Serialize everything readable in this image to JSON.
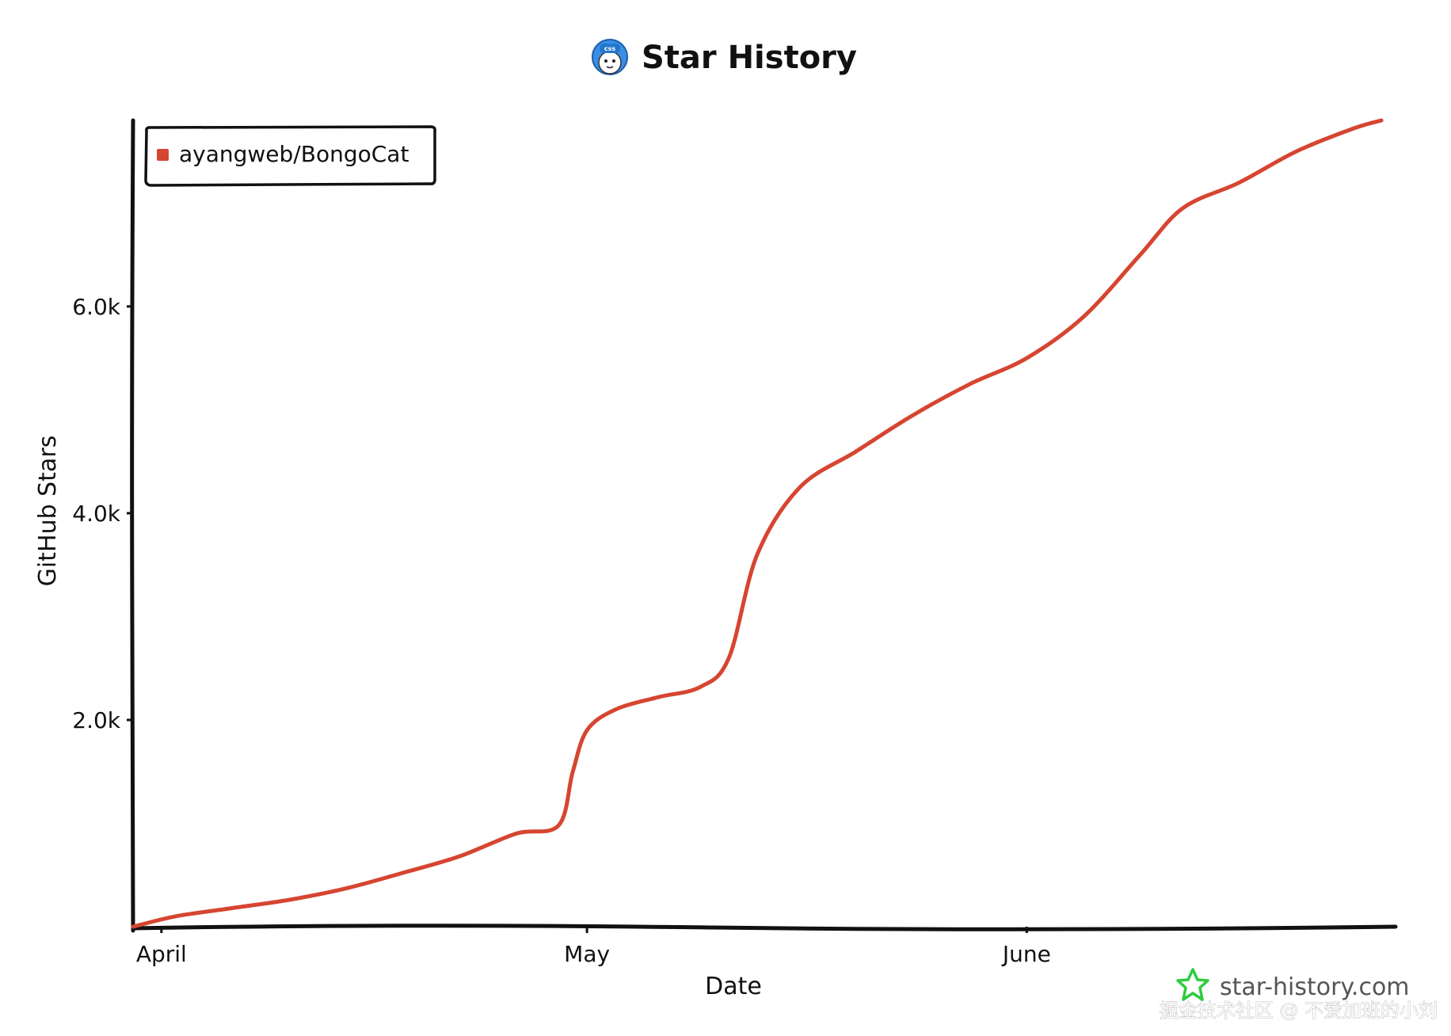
{
  "header": {
    "title": "Star History",
    "logo_icon": "css-cat-avatar-icon"
  },
  "chart_data": {
    "type": "line",
    "title": "Star History",
    "xlabel": "Date",
    "ylabel": "GitHub Stars",
    "x_tick_labels": [
      "April",
      "May",
      "June"
    ],
    "x_ticks": [
      "2024-04-01",
      "2024-05-01",
      "2024-06-01"
    ],
    "y_tick_labels": [
      "2.0k",
      "4.0k",
      "6.0k"
    ],
    "y_ticks": [
      2000,
      4000,
      6000
    ],
    "xlim": [
      "2024-03-30",
      "2024-06-27"
    ],
    "ylim": [
      0,
      7800
    ],
    "grid": false,
    "legend_position": "top-left",
    "series": [
      {
        "name": "ayangweb/BongoCat",
        "color": "#d64531",
        "points": [
          {
            "x": "2024-03-30",
            "y": 0
          },
          {
            "x": "2024-04-02",
            "y": 100
          },
          {
            "x": "2024-04-06",
            "y": 180
          },
          {
            "x": "2024-04-10",
            "y": 260
          },
          {
            "x": "2024-04-14",
            "y": 370
          },
          {
            "x": "2024-04-18",
            "y": 520
          },
          {
            "x": "2024-04-22",
            "y": 680
          },
          {
            "x": "2024-04-26",
            "y": 900
          },
          {
            "x": "2024-04-29",
            "y": 980
          },
          {
            "x": "2024-04-30",
            "y": 1500
          },
          {
            "x": "2024-05-01",
            "y": 1900
          },
          {
            "x": "2024-05-03",
            "y": 2100
          },
          {
            "x": "2024-05-06",
            "y": 2220
          },
          {
            "x": "2024-05-09",
            "y": 2320
          },
          {
            "x": "2024-05-11",
            "y": 2600
          },
          {
            "x": "2024-05-13",
            "y": 3600
          },
          {
            "x": "2024-05-16",
            "y": 4250
          },
          {
            "x": "2024-05-20",
            "y": 4600
          },
          {
            "x": "2024-05-24",
            "y": 4950
          },
          {
            "x": "2024-05-28",
            "y": 5250
          },
          {
            "x": "2024-06-01",
            "y": 5500
          },
          {
            "x": "2024-06-05",
            "y": 5900
          },
          {
            "x": "2024-06-09",
            "y": 6500
          },
          {
            "x": "2024-06-12",
            "y": 6950
          },
          {
            "x": "2024-06-16",
            "y": 7200
          },
          {
            "x": "2024-06-20",
            "y": 7500
          },
          {
            "x": "2024-06-24",
            "y": 7720
          },
          {
            "x": "2024-06-26",
            "y": 7800
          }
        ]
      }
    ]
  },
  "footer": {
    "brand_text": "star-history.com",
    "brand_icon": "star-icon",
    "brand_color": "#2ecc40",
    "watermark": "掘金技术社区 @ 不爱加班的小刘"
  },
  "colors": {
    "axis": "#111111",
    "line": "#d64531",
    "background": "#ffffff"
  }
}
